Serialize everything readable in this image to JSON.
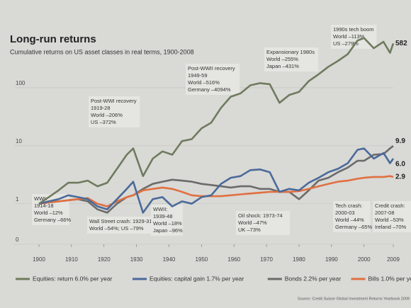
{
  "chart_data": {
    "type": "line",
    "title": "Long-run returns",
    "subtitle": "Cumulative returns on US asset classes in real terms, 1900-2008",
    "source": "Source: Credit Suisse Global Investment Returns Yearbook 2009",
    "log_scale": true,
    "grid": true,
    "legend_position": "bottom",
    "xlim": [
      1900,
      2009
    ],
    "xticks": [
      1900,
      1910,
      1920,
      1930,
      1940,
      1950,
      1960,
      1970,
      1980,
      1990,
      2000,
      2009
    ],
    "ylim": [
      0.2,
      1000
    ],
    "yticks": [
      {
        "value": 0.2,
        "label": "0"
      },
      1,
      10,
      100
    ],
    "x": [
      1900,
      1903,
      1906,
      1909,
      1912,
      1915,
      1918,
      1921,
      1924,
      1927,
      1929,
      1932,
      1935,
      1938,
      1941,
      1944,
      1947,
      1950,
      1953,
      1956,
      1959,
      1962,
      1965,
      1968,
      1971,
      1974,
      1977,
      1980,
      1983,
      1986,
      1989,
      1992,
      1995,
      1998,
      2000,
      2003,
      2006,
      2008,
      2009
    ],
    "series": [
      {
        "name": "Equities: return 6.0% per year",
        "color": "#6f7b5e",
        "end_label": "582",
        "values": [
          1,
          1.3,
          1.7,
          2.3,
          2.3,
          2.5,
          2.0,
          2.3,
          4,
          7,
          9,
          3,
          6,
          8,
          7,
          12,
          13,
          20,
          25,
          45,
          70,
          80,
          110,
          120,
          115,
          55,
          75,
          85,
          130,
          170,
          230,
          290,
          380,
          650,
          720,
          480,
          620,
          400,
          582
        ]
      },
      {
        "name": "Equities: capital gain 1.7% per year",
        "color": "#4a6a9a",
        "end_label": "6.0",
        "values": [
          1,
          1.1,
          1.2,
          1.4,
          1.3,
          1.2,
          0.9,
          0.8,
          1.2,
          1.8,
          2.4,
          0.7,
          1.2,
          1.3,
          0.9,
          1.1,
          1.0,
          1.3,
          1.4,
          2.2,
          2.8,
          3,
          3.8,
          3.9,
          3.5,
          1.6,
          1.8,
          1.7,
          2.3,
          2.8,
          3.5,
          4,
          5,
          8.5,
          9,
          6,
          7.5,
          5,
          6
        ]
      },
      {
        "name": "Bonds 2.2% per year",
        "color": "#6b6b6b",
        "end_label": "9.9",
        "values": [
          1,
          1.05,
          1.1,
          1.15,
          1.2,
          1.1,
          0.8,
          0.7,
          1.0,
          1.3,
          1.4,
          1.8,
          2.2,
          2.4,
          2.6,
          2.5,
          2.4,
          2.2,
          2.1,
          2.0,
          1.9,
          2.0,
          2.0,
          1.8,
          1.8,
          1.6,
          1.6,
          1.2,
          1.7,
          2.5,
          2.8,
          3.5,
          4.2,
          5.5,
          5.5,
          7,
          7.2,
          9,
          9.9
        ]
      },
      {
        "name": "Bills 1.0% per year",
        "color": "#e07040",
        "end_label": "2.9",
        "values": [
          1,
          1.05,
          1.1,
          1.15,
          1.2,
          1.25,
          1.0,
          0.9,
          1.1,
          1.3,
          1.4,
          1.7,
          1.8,
          1.9,
          1.8,
          1.6,
          1.4,
          1.35,
          1.35,
          1.35,
          1.4,
          1.45,
          1.5,
          1.55,
          1.6,
          1.6,
          1.6,
          1.65,
          1.8,
          2.0,
          2.2,
          2.4,
          2.5,
          2.7,
          2.8,
          2.9,
          2.9,
          3.0,
          2.9
        ]
      }
    ],
    "annotations": [
      {
        "lines": [
          "1990s tech boom",
          "World –113%",
          "US –279%"
        ]
      },
      {
        "lines": [
          "Expansionary 1980s",
          "World –255%",
          "Japan –431%"
        ]
      },
      {
        "lines": [
          "Post-WWII recovery",
          "1949-59",
          "World –516%",
          "Germany –4094%"
        ]
      },
      {
        "lines": [
          "Post-WWI recovery",
          "1919-28",
          "World –206%",
          "US –372%"
        ]
      },
      {
        "lines": [
          "WWI:",
          "1914-18",
          "World –12%",
          "Germany –66%"
        ]
      },
      {
        "lines": [
          "Wall Street crash: 1929-31",
          "World –54%; US –79%"
        ]
      },
      {
        "lines": [
          "WWII:",
          "1939-48",
          "World –18%",
          "Japan –96%"
        ]
      },
      {
        "lines": [
          "Oil shock: 1973-74",
          "World –47%",
          "UK –73%"
        ]
      },
      {
        "lines": [
          "Tech crash:",
          "2000-03",
          "World –44%",
          "Germany –65%"
        ]
      },
      {
        "lines": [
          "Credit crash:",
          "2007-08",
          "World –53%",
          "Ireland –70%"
        ]
      }
    ]
  }
}
